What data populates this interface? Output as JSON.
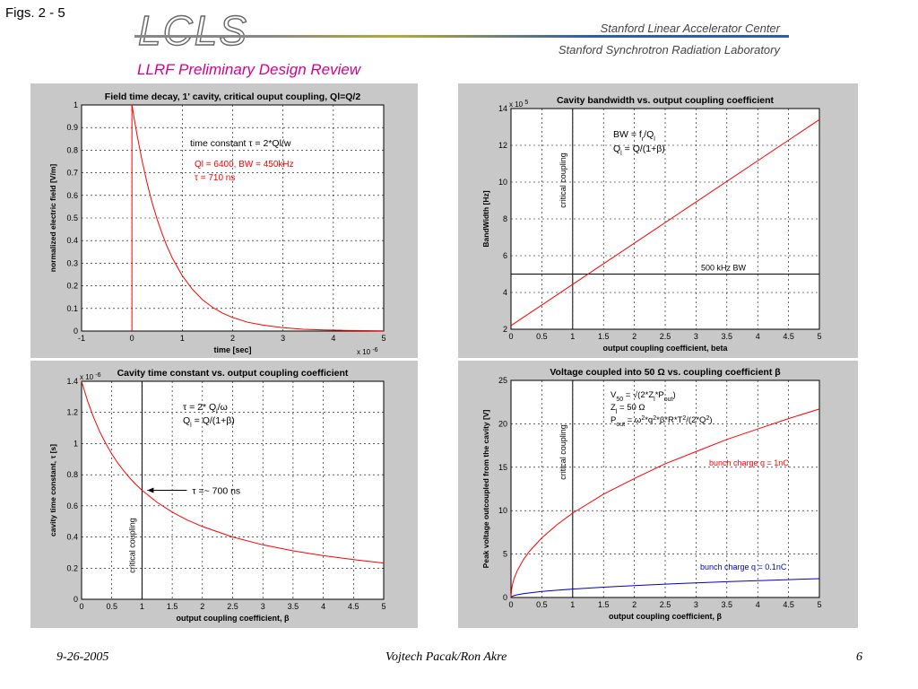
{
  "header": {
    "figs_label": "Figs. 2 - 5",
    "logo_text": "LCLS",
    "org1": "Stanford Linear Accelerator Center",
    "org2": "Stanford Synchrotron Radiation Laboratory",
    "review_title": "LLRF Preliminary Design Review"
  },
  "footer": {
    "date": "9-26-2005",
    "authors": "Vojtech Pacak/Ron Akre",
    "page": "6"
  },
  "colors": {
    "red": "#ff0000",
    "blue": "#0000cc",
    "panel": "#c8c8c8"
  },
  "chart_data": [
    {
      "type": "line",
      "title": "Field time decay, 1' cavity, critical ouput coupling, Ql=Q/2",
      "xlabel": "time [sec]",
      "ylabel": "normalized electric field [V/m]",
      "x_multiplier": "x 10",
      "x_multiplier_exp": "-6",
      "xlim": [
        -1,
        5
      ],
      "ylim": [
        0,
        1
      ],
      "xticks": [
        -1,
        0,
        1,
        2,
        3,
        4,
        5
      ],
      "yticks": [
        0,
        0.1,
        0.2,
        0.3,
        0.4,
        0.5,
        0.6,
        0.7,
        0.8,
        0.9,
        1
      ],
      "ytick_labels": [
        "0",
        "0.1",
        "0.2",
        "0.3",
        "0.4",
        "0.5",
        "0.6",
        "0.7",
        "0.8",
        "0.9",
        "1"
      ],
      "grid": true,
      "series": [
        {
          "color": "#ff0000",
          "x": [
            0,
            0.05,
            0.1,
            0.2,
            0.3,
            0.4,
            0.5,
            0.6,
            0.7,
            0.8,
            1.0,
            1.2,
            1.4,
            1.6,
            1.8,
            2.0,
            2.3,
            2.6,
            3.0,
            3.4,
            3.8,
            4.2,
            4.6,
            5.0
          ],
          "y": [
            1,
            0.932,
            0.869,
            0.755,
            0.656,
            0.569,
            0.494,
            0.43,
            0.373,
            0.324,
            0.245,
            0.185,
            0.139,
            0.105,
            0.079,
            0.06,
            0.039,
            0.026,
            0.015,
            0.008,
            0.005,
            0.003,
            0.002,
            0.001
          ]
        }
      ],
      "step": {
        "x": 0,
        "y_from": 0,
        "y_to": 1,
        "color": "#ff0000"
      },
      "annotations": [
        {
          "text": "time constant τ = 2*Ql/w",
          "color": "#000000"
        },
        {
          "text": "Ql = 6400, BW = 450kHz",
          "color": "#ff0000"
        },
        {
          "text": "τ = 710 ns",
          "color": "#ff0000"
        }
      ]
    },
    {
      "type": "line",
      "title": "Cavity bandwidth vs. output coupling coefficient",
      "xlabel": "output coupling coefficient, beta",
      "ylabel": "BandWidth [Hz]",
      "y_multiplier": "x 10",
      "y_multiplier_exp": "5",
      "xlim": [
        0,
        5
      ],
      "ylim": [
        2,
        14
      ],
      "xticks": [
        0,
        0.5,
        1,
        1.5,
        2,
        2.5,
        3,
        3.5,
        4,
        4.5,
        5
      ],
      "yticks": [
        2,
        4,
        6,
        8,
        10,
        12,
        14
      ],
      "ytick_labels": [
        "2",
        "4",
        "6",
        "8",
        "10",
        "12",
        "14"
      ],
      "grid": true,
      "series": [
        {
          "color": "#ff0000",
          "x": [
            0,
            5
          ],
          "y": [
            2.2,
            13.4
          ]
        }
      ],
      "hline": {
        "y": 5,
        "label": "500 kHz BW"
      },
      "vline": {
        "x": 1,
        "label": "critical coupling"
      },
      "annotations": [
        {
          "text": "BW = fr/Ql"
        },
        {
          "text": "Ql = Q/(1+β)"
        }
      ]
    },
    {
      "type": "line",
      "title": "Cavity time constant vs. output coupling coefficient",
      "xlabel": "output coupling coefficient, β",
      "ylabel": "cavity time constant, τ [s]",
      "y_multiplier": "x 10",
      "y_multiplier_exp": "-6",
      "xlim": [
        0,
        5
      ],
      "ylim": [
        0,
        1.4
      ],
      "xticks": [
        0,
        0.5,
        1,
        1.5,
        2,
        2.5,
        3,
        3.5,
        4,
        4.5,
        5
      ],
      "yticks": [
        0,
        0.2,
        0.4,
        0.6,
        0.8,
        1,
        1.2,
        1.4
      ],
      "ytick_labels": [
        "0",
        "0.2",
        "0.4",
        "0.6",
        "0.8",
        "1",
        "1.2",
        "1.4"
      ],
      "grid": true,
      "series": [
        {
          "color": "#ff0000",
          "x": [
            0,
            0.1,
            0.2,
            0.3,
            0.4,
            0.5,
            0.6,
            0.7,
            0.8,
            0.9,
            1.0,
            1.25,
            1.5,
            1.75,
            2.0,
            2.5,
            3.0,
            3.5,
            4.0,
            4.5,
            5.0
          ],
          "y": [
            1.4,
            1.273,
            1.167,
            1.077,
            1.0,
            0.933,
            0.875,
            0.824,
            0.778,
            0.737,
            0.7,
            0.622,
            0.56,
            0.509,
            0.467,
            0.4,
            0.35,
            0.311,
            0.28,
            0.255,
            0.233
          ]
        }
      ],
      "vline": {
        "x": 1,
        "label": "critical coupling"
      },
      "annotations": [
        {
          "text": "τ = 2* Ql/ω"
        },
        {
          "text": "Ql = Q/(1+β)"
        },
        {
          "text": "τ =~ 700 ns"
        }
      ]
    },
    {
      "type": "line",
      "title": "Voltage coupled into 50 Ω vs. coupling coefficient β",
      "xlabel": "output coupling coefficient, β",
      "ylabel": "Peak voltage outcoupled from the cavity [V]",
      "xlim": [
        0,
        5
      ],
      "ylim": [
        0,
        25
      ],
      "xticks": [
        0,
        0.5,
        1,
        1.5,
        2,
        2.5,
        3,
        3.5,
        4,
        4.5,
        5
      ],
      "yticks": [
        0,
        5,
        10,
        15,
        20,
        25
      ],
      "ytick_labels": [
        "0",
        "5",
        "10",
        "15",
        "20",
        "25"
      ],
      "grid": true,
      "series": [
        {
          "name": "bunch charge q = 1nC",
          "color": "#ff0000",
          "x": [
            0,
            0.01,
            0.03,
            0.05,
            0.1,
            0.2,
            0.3,
            0.5,
            0.75,
            1,
            1.5,
            2,
            2.5,
            3,
            3.5,
            4,
            4.5,
            5
          ],
          "y": [
            0,
            0.97,
            1.68,
            2.17,
            3.07,
            4.35,
            5.32,
            6.87,
            8.41,
            9.71,
            11.9,
            13.7,
            15.4,
            16.8,
            18.2,
            19.4,
            20.6,
            21.7
          ]
        },
        {
          "name": "bunch charge q = 0.1nC",
          "color": "#0000cc",
          "x": [
            0,
            0.01,
            0.03,
            0.05,
            0.1,
            0.2,
            0.3,
            0.5,
            0.75,
            1,
            1.5,
            2,
            2.5,
            3,
            3.5,
            4,
            4.5,
            5
          ],
          "y": [
            0,
            0.097,
            0.168,
            0.217,
            0.307,
            0.435,
            0.532,
            0.687,
            0.841,
            0.971,
            1.19,
            1.37,
            1.54,
            1.68,
            1.82,
            1.94,
            2.06,
            2.17
          ]
        }
      ],
      "vline": {
        "x": 1,
        "label": "critical coupling"
      },
      "annotations": [
        {
          "text": "V50 = √(2*Zl*Pout)"
        },
        {
          "text": "Zl = 50 Ω"
        },
        {
          "text": "Pout = ω²*q²*β*R*T²/(2*Q²)"
        }
      ]
    }
  ]
}
